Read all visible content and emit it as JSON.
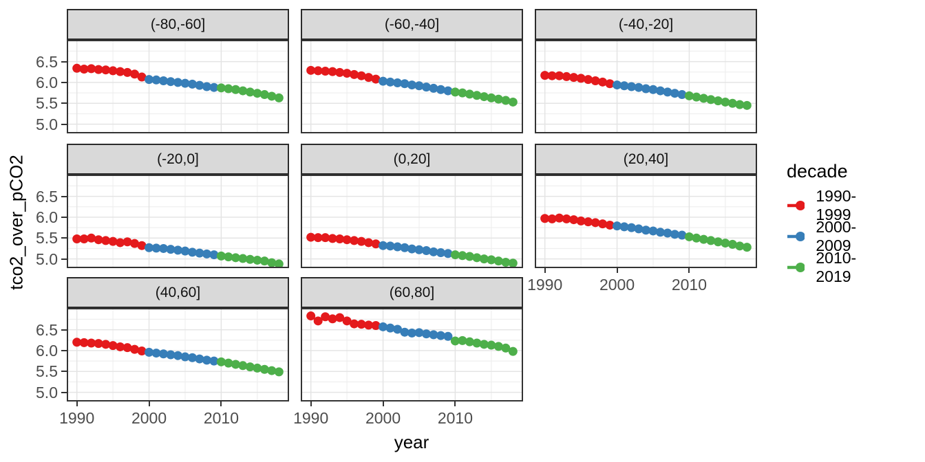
{
  "chart_data": {
    "type": "scatter",
    "title": "",
    "xlabel": "year",
    "ylabel": "tco2_over_pCO2",
    "xlim": [
      1988.6,
      2019.4
    ],
    "ylim": [
      4.78,
      7.02
    ],
    "x_ticks": [
      1990,
      2000,
      2010
    ],
    "x_tick_labels": [
      "1990",
      "2000",
      "2010"
    ],
    "y_ticks": [
      6.5,
      6.0,
      5.5,
      5.0
    ],
    "y_tick_labels": [
      "6.5",
      "6.0",
      "5.5",
      "5.0"
    ],
    "grid": "on",
    "legend": {
      "title": "decade",
      "position": "right",
      "entries": [
        {
          "label": "1990-1999",
          "color": "#E41A1C",
          "start_year": 1990
        },
        {
          "label": "2000-2009",
          "color": "#377EB8",
          "start_year": 2000
        },
        {
          "label": "2010-2019",
          "color": "#4DAF4A",
          "start_year": 2010
        }
      ]
    },
    "facets": [
      {
        "label": "(-80,-60]",
        "series": [
          [
            6.34,
            6.32,
            6.33,
            6.31,
            6.3,
            6.28,
            6.26,
            6.24,
            6.2,
            6.13
          ],
          [
            6.07,
            6.06,
            6.04,
            6.02,
            6.0,
            5.98,
            5.96,
            5.93,
            5.9,
            5.88
          ],
          [
            5.87,
            5.85,
            5.83,
            5.8,
            5.77,
            5.74,
            5.71,
            5.67,
            5.63
          ]
        ]
      },
      {
        "label": "(-60,-40]",
        "series": [
          [
            6.29,
            6.28,
            6.27,
            6.26,
            6.24,
            6.22,
            6.19,
            6.16,
            6.12,
            6.08
          ],
          [
            6.03,
            6.01,
            5.99,
            5.97,
            5.94,
            5.92,
            5.89,
            5.86,
            5.83,
            5.8
          ],
          [
            5.77,
            5.75,
            5.72,
            5.69,
            5.66,
            5.63,
            5.6,
            5.57,
            5.53
          ]
        ]
      },
      {
        "label": "(-40,-20]",
        "series": [
          [
            6.17,
            6.16,
            6.16,
            6.14,
            6.12,
            6.1,
            6.07,
            6.04,
            6.01,
            5.97
          ],
          [
            5.94,
            5.92,
            5.9,
            5.88,
            5.85,
            5.83,
            5.8,
            5.77,
            5.74,
            5.71
          ],
          [
            5.68,
            5.65,
            5.62,
            5.59,
            5.56,
            5.53,
            5.5,
            5.47,
            5.45
          ]
        ]
      },
      {
        "label": "(-20,0]",
        "series": [
          [
            5.48,
            5.48,
            5.5,
            5.46,
            5.44,
            5.42,
            5.39,
            5.41,
            5.37,
            5.32
          ],
          [
            5.27,
            5.26,
            5.25,
            5.23,
            5.21,
            5.19,
            5.16,
            5.14,
            5.12,
            5.1
          ],
          [
            5.07,
            5.05,
            5.03,
            5.01,
            4.99,
            4.97,
            4.95,
            4.91,
            4.88
          ]
        ]
      },
      {
        "label": "(0,20]",
        "series": [
          [
            5.52,
            5.51,
            5.51,
            5.49,
            5.48,
            5.46,
            5.44,
            5.42,
            5.39,
            5.36
          ],
          [
            5.32,
            5.31,
            5.29,
            5.27,
            5.24,
            5.22,
            5.2,
            5.17,
            5.15,
            5.13
          ],
          [
            5.1,
            5.08,
            5.06,
            5.03,
            5.0,
            4.98,
            4.95,
            4.92,
            4.9
          ]
        ]
      },
      {
        "label": "(20,40]",
        "series": [
          [
            5.97,
            5.96,
            5.98,
            5.96,
            5.94,
            5.91,
            5.89,
            5.87,
            5.84,
            5.81
          ],
          [
            5.79,
            5.77,
            5.75,
            5.72,
            5.69,
            5.67,
            5.64,
            5.62,
            5.59,
            5.57
          ],
          [
            5.53,
            5.5,
            5.47,
            5.44,
            5.41,
            5.38,
            5.35,
            5.31,
            5.28
          ]
        ]
      },
      {
        "label": "(40,60]",
        "series": [
          [
            6.2,
            6.19,
            6.18,
            6.17,
            6.15,
            6.12,
            6.09,
            6.07,
            6.03,
            5.99
          ],
          [
            5.96,
            5.94,
            5.92,
            5.9,
            5.88,
            5.85,
            5.83,
            5.8,
            5.77,
            5.75
          ],
          [
            5.73,
            5.7,
            5.67,
            5.64,
            5.61,
            5.58,
            5.55,
            5.52,
            5.49
          ]
        ]
      },
      {
        "label": "(60,80]",
        "series": [
          [
            6.83,
            6.71,
            6.81,
            6.76,
            6.79,
            6.71,
            6.64,
            6.63,
            6.61,
            6.6
          ],
          [
            6.57,
            6.54,
            6.51,
            6.44,
            6.42,
            6.43,
            6.4,
            6.38,
            6.36,
            6.34
          ],
          [
            6.23,
            6.24,
            6.21,
            6.18,
            6.15,
            6.13,
            6.1,
            6.06,
            5.98
          ]
        ]
      }
    ]
  }
}
